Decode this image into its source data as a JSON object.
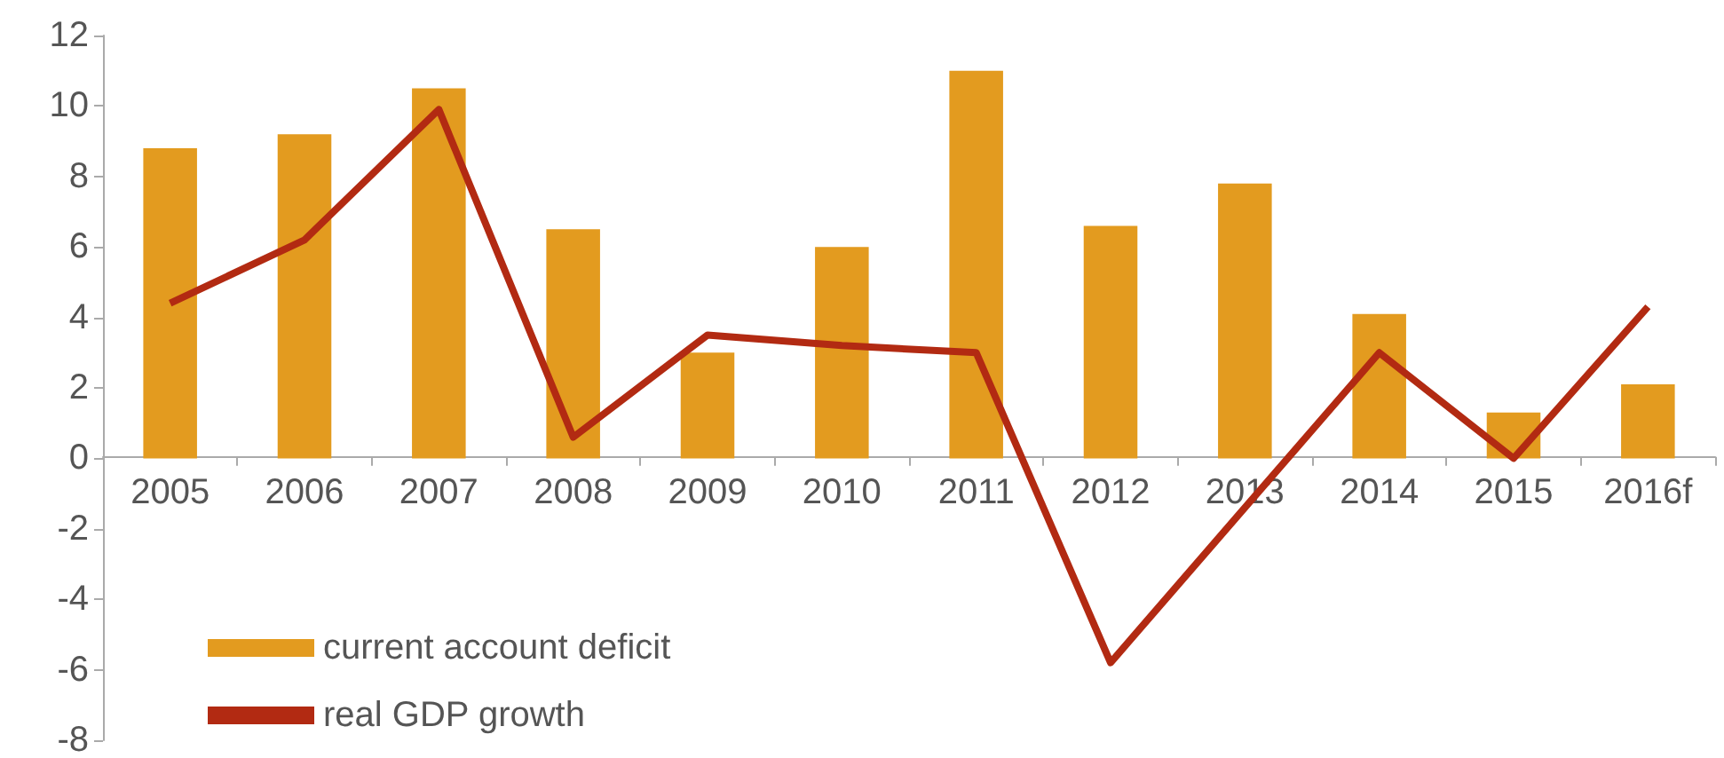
{
  "chart_data": {
    "type": "bar",
    "categories": [
      "2005",
      "2006",
      "2007",
      "2008",
      "2009",
      "2010",
      "2011",
      "2012",
      "2013",
      "2014",
      "2015",
      "2016f"
    ],
    "series": [
      {
        "name": "current account deficit",
        "color": "#e39b1f",
        "values": [
          8.8,
          9.2,
          10.5,
          6.5,
          3.0,
          6.0,
          11.0,
          6.6,
          7.8,
          4.1,
          1.3,
          2.1
        ]
      },
      {
        "name": "real GDP growth",
        "type": "line",
        "color": "#b22a12",
        "values": [
          4.4,
          6.2,
          9.9,
          0.6,
          3.5,
          3.2,
          3.0,
          -5.8,
          -1.4,
          3.0,
          0.0,
          4.3
        ]
      }
    ],
    "ylim": [
      -8,
      12
    ],
    "yticks": [
      -8,
      -6,
      -4,
      -2,
      0,
      2,
      4,
      6,
      8,
      10,
      12
    ],
    "legend": "bottom left",
    "marker": "none"
  }
}
